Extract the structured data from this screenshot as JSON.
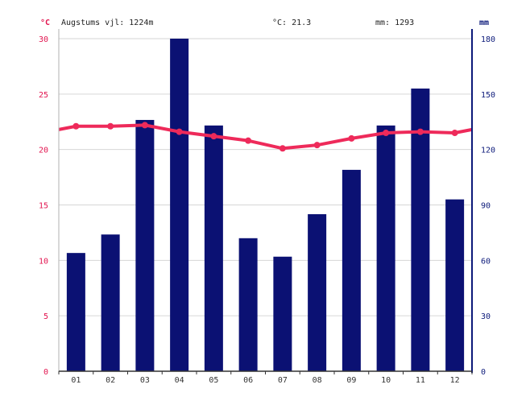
{
  "header": {
    "location": "Augstums vjl: 1224m",
    "avg_temp": "°C: 21.3",
    "precip_total": "mm: 1293",
    "left_unit": "°C",
    "right_unit": "mm"
  },
  "colors": {
    "temp_axis": "#e2144f",
    "precip_axis": "#0c1a7a",
    "bar_fill": "#0b1173",
    "temp_line": "#ee2a5a",
    "grid": "#d6d6d6"
  },
  "chart_data": {
    "type": "bar",
    "categories": [
      "01",
      "02",
      "03",
      "04",
      "05",
      "06",
      "07",
      "08",
      "09",
      "10",
      "11",
      "12"
    ],
    "series": [
      {
        "axis": "right",
        "type": "bar",
        "values": [
          64,
          74,
          136,
          180,
          133,
          72,
          62,
          85,
          109,
          133,
          153,
          93
        ]
      },
      {
        "axis": "left",
        "type": "line",
        "values": [
          22.1,
          22.1,
          22.2,
          21.6,
          21.2,
          20.8,
          20.1,
          20.4,
          21.0,
          21.5,
          21.6,
          21.5
        ]
      }
    ],
    "y_left": {
      "label": "°C",
      "ticks": [
        "0",
        "5",
        "10",
        "15",
        "20",
        "25",
        "30"
      ],
      "range": [
        0,
        30
      ]
    },
    "y_right": {
      "label": "mm",
      "ticks": [
        "0",
        "30",
        "60",
        "90",
        "120",
        "150",
        "180"
      ],
      "range": [
        0,
        180
      ]
    },
    "grid": true
  }
}
